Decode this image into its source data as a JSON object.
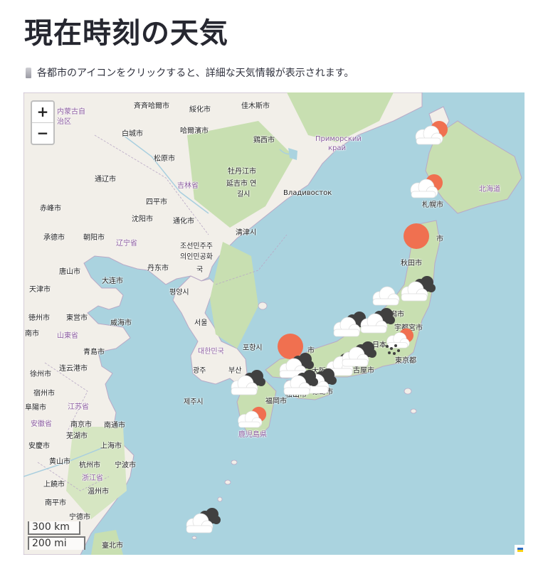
{
  "title": "現在時刻の天気",
  "info_text": "各都市のアイコンをクリックすると、詳細な天気情報が表示されます。",
  "zoom": {
    "in": "+",
    "out": "−"
  },
  "scale": {
    "km": "300 km",
    "mi": "200 mi"
  },
  "colors": {
    "sea": "#aad3df",
    "land": "#f2efe9",
    "green": "#c8dfb1",
    "sun": "#f07050",
    "cloud": "#ffffff",
    "dark_cloud": "#404040"
  },
  "labels": {
    "l1": "内蒙古自",
    "l2": "治区",
    "l3": "斉斉哈爾市",
    "l4": "綏化市",
    "l5": "佳木斯市",
    "l6": "白城市",
    "l7": "哈爾濱市",
    "l8": "鶏西市",
    "l9": "Приморский",
    "l10": "край",
    "l11": "松原市",
    "l12": "通辽市",
    "l13": "吉林省",
    "l14": "牡丹江市",
    "l15": "延吉市 연",
    "l16": "길시",
    "l17": "Владивосток",
    "l18": "北海道",
    "l19": "四平市",
    "l20": "札幌市",
    "l21": "赤峰市",
    "l22": "沈阳市",
    "l23": "通化市",
    "l24": "承德市",
    "l25": "朝阳市",
    "l26": "辽宁省",
    "l27": "조선민주주",
    "l28": "의인민공화",
    "l29": "국",
    "l30": "丹东市",
    "l31": "清津시",
    "l32": "唐山市",
    "l33": "大连市",
    "l34": "秋田市",
    "l35": "天津市",
    "l36": "평양시",
    "l37": "徳州市",
    "l38": "東営市",
    "l39": "威海市",
    "l40": "서울",
    "l41": "新潟市",
    "l42": "宇都宮市",
    "l43": "山東省",
    "l44": "南市",
    "l45": "대한민국",
    "l46": "포항시",
    "l47": "青島市",
    "l48": "日本",
    "l49": "東京都",
    "l50": "徐州市",
    "l51": "连云港市",
    "l52": "광주",
    "l53": "부산",
    "l54": "名古屋市",
    "l55": "宿州市",
    "l56": "徳島市",
    "l57": "福岡市",
    "l58": "阜陽市",
    "l59": "江苏省",
    "l60": "제주시",
    "l61": "安徽省",
    "l62": "南京市",
    "l63": "南通市",
    "l64": "芜湖市",
    "l65": "鹿児島県",
    "l66": "安慶市",
    "l67": "上海市",
    "l68": "黄山市",
    "l69": "杭州市",
    "l70": "宁波市",
    "l71": "浙江省",
    "l72": "上饒市",
    "l73": "温州市",
    "l74": "南平市",
    "l75": "宁德市",
    "l76": "臺北市",
    "l77": "市",
    "l78": "大阪市",
    "l79": "松山市",
    "l80": "市"
  },
  "cities": [
    {
      "icon": "sun-cloud-icon"
    },
    {
      "icon": "sun-cloud-icon"
    },
    {
      "icon": "sun-icon"
    },
    {
      "icon": "cloud-icon"
    },
    {
      "icon": "dark-cloud-icon"
    },
    {
      "icon": "dark-cloud-icon"
    },
    {
      "icon": "dark-cloud-icon"
    },
    {
      "icon": "sun-cloud-icon"
    },
    {
      "icon": "sun-icon"
    },
    {
      "icon": "dark-cloud-icon"
    },
    {
      "icon": "dark-cloud-icon"
    },
    {
      "icon": "dark-cloud-icon"
    },
    {
      "icon": "rain-cloud-icon"
    },
    {
      "icon": "dark-cloud-icon"
    },
    {
      "icon": "dark-cloud-icon"
    },
    {
      "icon": "dark-cloud-icon"
    },
    {
      "icon": "sun-cloud-icon"
    },
    {
      "icon": "dark-cloud-icon"
    }
  ]
}
